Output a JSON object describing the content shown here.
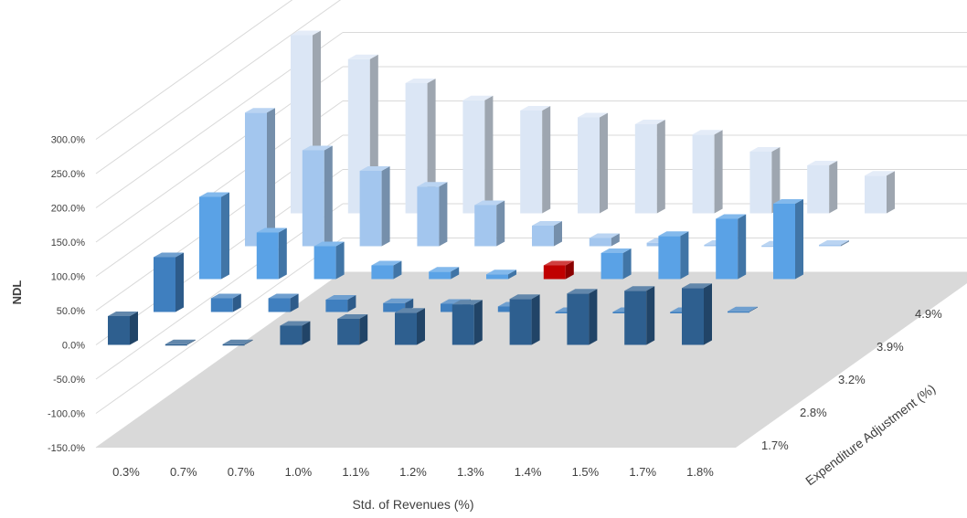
{
  "chart_data": {
    "type": "bar",
    "subtype": "3d-column",
    "title": "",
    "xlabel": "Std. of Revenues (%)",
    "ylabel": "NDL",
    "zlabel": "Expenditure Adjustment (%)",
    "categories": [
      "0.3%",
      "0.7%",
      "0.7%",
      "1.0%",
      "1.1%",
      "1.2%",
      "1.3%",
      "1.4%",
      "1.5%",
      "1.7%",
      "1.8%"
    ],
    "y_ticks": [
      "-150.0%",
      "-100.0%",
      "-50.0%",
      "0.0%",
      "50.0%",
      "100.0%",
      "150.0%",
      "200.0%",
      "250.0%",
      "300.0%"
    ],
    "ylim": [
      -150,
      300
    ],
    "y_unit": "%",
    "grid": true,
    "highlight": {
      "series": "3.2%",
      "category_index": 6,
      "color": "#c00000"
    },
    "series": [
      {
        "name": "1.7%",
        "color": "#2e5f8f",
        "values": [
          42,
          1,
          1,
          28,
          38,
          47,
          59,
          67,
          75,
          79,
          83
        ]
      },
      {
        "name": "2.8%",
        "color": "#3f7fbf",
        "values": [
          80,
          20,
          20,
          18,
          13,
          12,
          8,
          0,
          0,
          0,
          1
        ]
      },
      {
        "name": "3.2%",
        "color": "#5aa2e6",
        "values": [
          120,
          68,
          48,
          20,
          11,
          7,
          20,
          38,
          63,
          88,
          110
        ]
      },
      {
        "name": "3.9%",
        "color": "#a3c6ee",
        "values": [
          195,
          140,
          110,
          87,
          60,
          30,
          12,
          5,
          2,
          1,
          2
        ]
      },
      {
        "name": "4.9%",
        "color": "#dbe6f5",
        "values": [
          260,
          225,
          190,
          165,
          150,
          140,
          130,
          115,
          90,
          70,
          55
        ]
      }
    ]
  }
}
